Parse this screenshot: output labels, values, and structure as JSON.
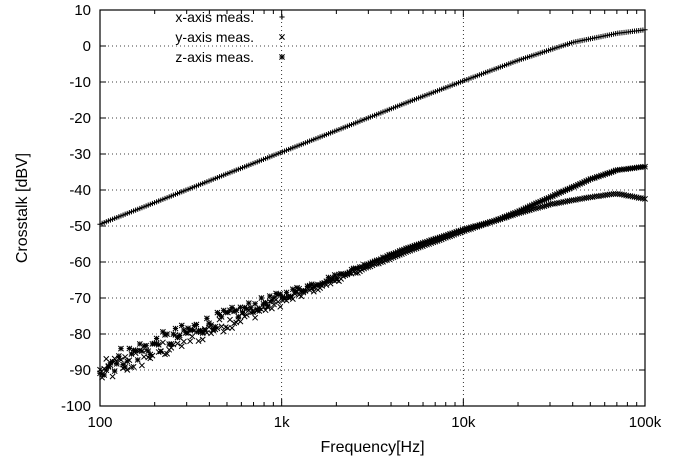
{
  "chart_data": {
    "type": "scatter",
    "x_scale": "log",
    "xlabel": "Frequency[Hz]",
    "ylabel": "Crosstalk [dBV]",
    "xlim": [
      100,
      100000
    ],
    "ylim": [
      -100,
      10
    ],
    "x_ticks": [
      100,
      1000,
      10000,
      100000
    ],
    "x_tick_labels": [
      "100",
      "1k",
      "10k",
      "100k"
    ],
    "y_ticks": [
      -100,
      -90,
      -80,
      -70,
      -60,
      -50,
      -40,
      -30,
      -20,
      -10,
      0,
      10
    ],
    "y_tick_labels": [
      "-100",
      "-90",
      "-80",
      "-70",
      "-60",
      "-50",
      "-40",
      "-30",
      "-20",
      "-10",
      "0",
      "10"
    ],
    "grid": true,
    "legend_position": "top-left",
    "series": [
      {
        "name": "x-axis meas.",
        "marker": "plus",
        "x": [
          100,
          200,
          500,
          1000,
          2000,
          5000,
          10000,
          20000,
          40000,
          70000,
          100000
        ],
        "y": [
          -49.5,
          -43.5,
          -35.5,
          -29.5,
          -23.5,
          -15.5,
          -9.7,
          -4.0,
          1.0,
          3.5,
          4.5
        ]
      },
      {
        "name": "y-axis meas.",
        "marker": "cross",
        "x": [
          100,
          200,
          500,
          1000,
          2000,
          5000,
          10000,
          15000,
          20000,
          30000,
          50000,
          70000,
          100000
        ],
        "y": [
          -91,
          -85,
          -77,
          -71,
          -65,
          -57,
          -51.5,
          -48.5,
          -46.5,
          -44,
          -42,
          -41,
          -42.5
        ]
      },
      {
        "name": "z-axis meas.",
        "marker": "star",
        "x": [
          100,
          200,
          500,
          1000,
          2000,
          5000,
          10000,
          15000,
          20000,
          30000,
          50000,
          70000,
          100000
        ],
        "y": [
          -89,
          -83,
          -75,
          -69.5,
          -64,
          -56,
          -51,
          -48.5,
          -46,
          -42,
          -37,
          -34.5,
          -33.5
        ]
      }
    ]
  }
}
